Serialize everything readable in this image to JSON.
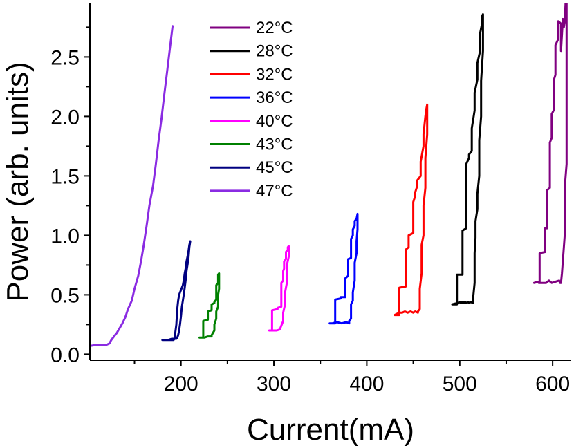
{
  "chart_data": {
    "type": "line",
    "title": "",
    "xlabel": "Current(mA)",
    "ylabel": "Power (arb. units)",
    "xlim": [
      102,
      620
    ],
    "ylim": [
      -0.05,
      2.95
    ],
    "x_ticks": [
      200,
      300,
      400,
      500,
      600
    ],
    "x_tick_labels": [
      "200",
      "300",
      "400",
      "500",
      "600"
    ],
    "y_ticks": [
      0.0,
      0.5,
      1.0,
      1.5,
      2.0,
      2.5
    ],
    "y_tick_labels": [
      "0.0",
      "0.5",
      "1.0",
      "1.5",
      "2.0",
      "2.5"
    ],
    "grid": false,
    "legend_position": "top-center",
    "series": [
      {
        "name": "22°C",
        "color": "#800080",
        "x": [
          580,
          586,
          586,
          592,
          592,
          594,
          594,
          597,
          597,
          599,
          599,
          601,
          601,
          603,
          603,
          606,
          606,
          609,
          609,
          611,
          612,
          613,
          614,
          615,
          615,
          613,
          613,
          610,
          609,
          608,
          607,
          599,
          596,
          593,
          592,
          585,
          584,
          580
        ],
        "y": [
          0.6,
          0.61,
          0.85,
          0.86,
          1.06,
          1.06,
          1.38,
          1.4,
          1.78,
          1.82,
          2.02,
          2.05,
          2.3,
          2.35,
          2.6,
          2.65,
          2.8,
          2.78,
          2.55,
          2.82,
          2.75,
          2.8,
          2.96,
          2.96,
          1.6,
          1.4,
          1.0,
          0.68,
          0.6,
          0.6,
          0.62,
          0.6,
          0.62,
          0.6,
          0.6,
          0.6,
          0.61,
          0.6
        ]
      },
      {
        "name": "28°C",
        "color": "#000000",
        "x": [
          492,
          497,
          497,
          503,
          503,
          507,
          507,
          510,
          510,
          513,
          513,
          516,
          516,
          519,
          519,
          522,
          522,
          524,
          524,
          525,
          525,
          523,
          523,
          521,
          521,
          519,
          519,
          517,
          517,
          516,
          516,
          514,
          514,
          512,
          510,
          509,
          507,
          506,
          505,
          504,
          503,
          502,
          501,
          500,
          498,
          497,
          492
        ],
        "y": [
          0.42,
          0.42,
          0.67,
          0.67,
          1.04,
          1.06,
          1.6,
          1.65,
          1.68,
          1.71,
          1.9,
          2.05,
          2.2,
          2.31,
          2.45,
          2.55,
          2.7,
          2.78,
          2.84,
          2.86,
          2.55,
          2.3,
          2.0,
          1.8,
          1.5,
          1.35,
          1.22,
          1.12,
          0.98,
          0.85,
          0.6,
          0.44,
          0.43,
          0.44,
          0.43,
          0.44,
          0.43,
          0.44,
          0.43,
          0.44,
          0.43,
          0.44,
          0.43,
          0.44,
          0.43,
          0.43,
          0.42
        ]
      },
      {
        "name": "32°C",
        "color": "#ff0000",
        "x": [
          430,
          435,
          435,
          442,
          442,
          445,
          445,
          450,
          450,
          452,
          452,
          454,
          454,
          458,
          458,
          461,
          461,
          463,
          464,
          465,
          465,
          463,
          463,
          461,
          461,
          459,
          459,
          457,
          457,
          455,
          455,
          452,
          450,
          447,
          444,
          441,
          438,
          435,
          430
        ],
        "y": [
          0.33,
          0.33,
          0.56,
          0.57,
          0.88,
          0.9,
          1.0,
          1.02,
          1.28,
          1.33,
          1.36,
          1.41,
          1.46,
          1.5,
          1.62,
          1.75,
          1.85,
          2.0,
          2.06,
          2.1,
          1.85,
          1.65,
          1.4,
          1.25,
          1.0,
          0.92,
          0.68,
          0.55,
          0.38,
          0.36,
          0.35,
          0.36,
          0.35,
          0.36,
          0.35,
          0.36,
          0.35,
          0.35,
          0.33
        ]
      },
      {
        "name": "36°C",
        "color": "#0000ff",
        "x": [
          360,
          366,
          366,
          372,
          372,
          377,
          377,
          380,
          380,
          383,
          383,
          385,
          385,
          387,
          387,
          389,
          390,
          390,
          389,
          389,
          387,
          387,
          385,
          385,
          383,
          383,
          381,
          381,
          378,
          373,
          368,
          363,
          360
        ],
        "y": [
          0.26,
          0.26,
          0.46,
          0.47,
          0.48,
          0.48,
          0.64,
          0.66,
          0.8,
          0.81,
          0.97,
          1.0,
          1.05,
          1.08,
          1.12,
          1.14,
          1.18,
          1.05,
          0.95,
          0.85,
          0.77,
          0.62,
          0.52,
          0.45,
          0.42,
          0.3,
          0.28,
          0.26,
          0.27,
          0.26,
          0.27,
          0.26,
          0.26
        ]
      },
      {
        "name": "40°C",
        "color": "#ff00ff",
        "x": [
          295,
          298,
          298,
          304,
          304,
          308,
          308,
          310,
          310,
          311,
          311,
          313,
          313,
          315,
          315,
          316,
          316,
          314,
          314,
          312,
          312,
          310,
          310,
          307,
          307,
          303,
          299,
          295
        ],
        "y": [
          0.2,
          0.2,
          0.37,
          0.38,
          0.39,
          0.4,
          0.6,
          0.62,
          0.7,
          0.72,
          0.78,
          0.8,
          0.86,
          0.88,
          0.9,
          0.91,
          0.82,
          0.75,
          0.6,
          0.52,
          0.42,
          0.35,
          0.28,
          0.22,
          0.21,
          0.2,
          0.2,
          0.2
        ]
      },
      {
        "name": "43°C",
        "color": "#008000",
        "x": [
          220,
          224,
          224,
          229,
          229,
          233,
          233,
          236,
          236,
          238,
          238,
          240,
          240,
          241,
          241,
          240,
          240,
          238,
          238,
          236,
          236,
          233,
          233,
          229,
          225,
          220
        ],
        "y": [
          0.14,
          0.14,
          0.28,
          0.29,
          0.36,
          0.37,
          0.42,
          0.43,
          0.44,
          0.46,
          0.58,
          0.6,
          0.67,
          0.68,
          0.55,
          0.5,
          0.4,
          0.36,
          0.3,
          0.25,
          0.2,
          0.16,
          0.15,
          0.15,
          0.14,
          0.14
        ]
      },
      {
        "name": "45°C",
        "color": "#000080",
        "x": [
          180,
          186,
          190,
          193,
          195,
          196,
          197,
          198,
          199,
          200,
          201,
          202,
          203,
          204,
          205,
          206,
          207,
          208,
          209,
          210,
          209,
          208,
          206,
          205,
          204,
          203,
          202,
          201,
          200,
          199,
          198,
          197,
          196,
          195,
          194,
          193,
          192,
          190,
          186,
          180
        ],
        "y": [
          0.12,
          0.12,
          0.13,
          0.13,
          0.25,
          0.38,
          0.45,
          0.5,
          0.52,
          0.54,
          0.56,
          0.58,
          0.62,
          0.68,
          0.72,
          0.78,
          0.82,
          0.86,
          0.92,
          0.95,
          0.9,
          0.8,
          0.7,
          0.62,
          0.56,
          0.5,
          0.45,
          0.4,
          0.32,
          0.25,
          0.2,
          0.16,
          0.14,
          0.13,
          0.13,
          0.13,
          0.12,
          0.12,
          0.12,
          0.12
        ]
      },
      {
        "name": "47°C",
        "color": "#8a2be2",
        "x": [
          102,
          110,
          120,
          123,
          125,
          128,
          131,
          134,
          137,
          140,
          143,
          147,
          150,
          154,
          157,
          160,
          163,
          166,
          170,
          173,
          176,
          179,
          182,
          185,
          188,
          191
        ],
        "y": [
          0.07,
          0.08,
          0.08,
          0.09,
          0.12,
          0.15,
          0.18,
          0.22,
          0.26,
          0.31,
          0.38,
          0.45,
          0.55,
          0.66,
          0.78,
          0.92,
          1.08,
          1.25,
          1.42,
          1.6,
          1.8,
          1.98,
          2.18,
          2.37,
          2.57,
          2.76
        ]
      }
    ]
  }
}
